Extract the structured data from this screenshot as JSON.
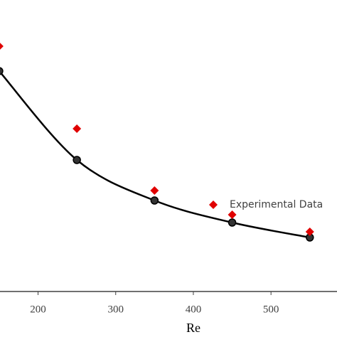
{
  "chart_data": {
    "type": "line",
    "xlabel": "Re",
    "xlim": [
      151,
      585
    ],
    "xticks": [
      200,
      300,
      400,
      500
    ],
    "ylim": [
      0,
      4.1
    ],
    "legend": "center right",
    "series": [
      {
        "color": "#000000",
        "marker": "circle",
        "line": true,
        "x": [
          150,
          250,
          350,
          450,
          550
        ],
        "values": [
          3.1,
          1.85,
          1.28,
          0.97,
          0.76
        ]
      },
      {
        "name": "Experimental Data",
        "color": "#e00000",
        "marker": "diamond",
        "line": false,
        "x": [
          150,
          250,
          350,
          450,
          550
        ],
        "values": [
          3.45,
          2.29,
          1.42,
          1.08,
          0.84
        ]
      }
    ]
  }
}
